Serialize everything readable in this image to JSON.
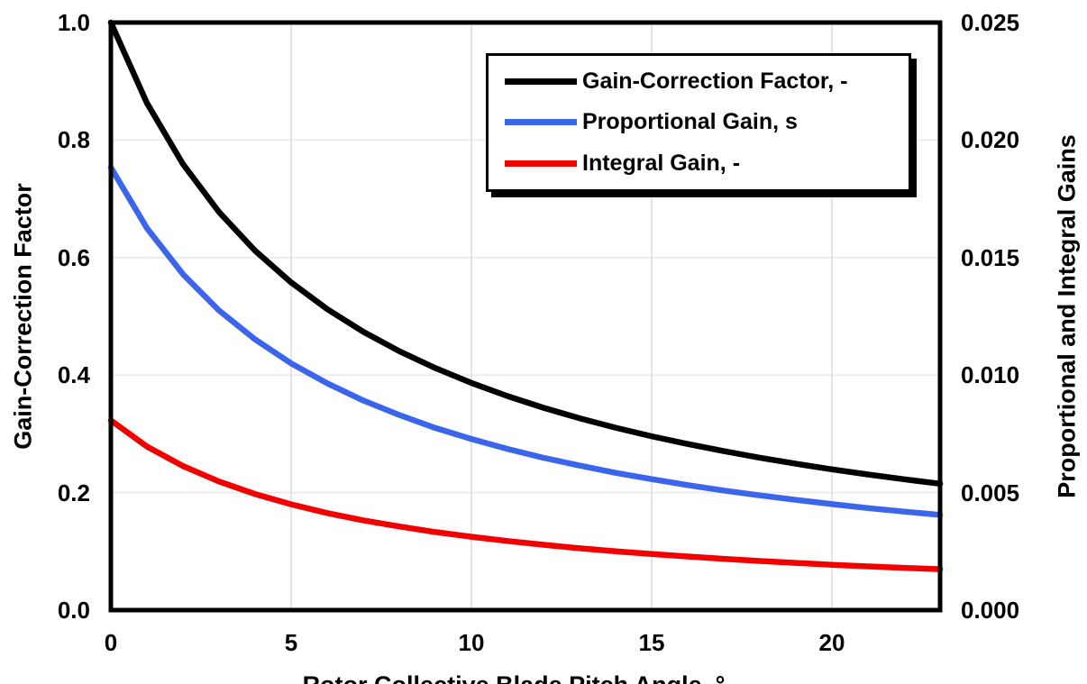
{
  "chart_data": {
    "type": "line",
    "title": "",
    "xlabel": "Rotor Collective Blade Pitch Angle, °",
    "ylabel_left": "Gain-Correction Factor",
    "ylabel_right": "Proportional and Integral Gains",
    "xlim": [
      0,
      23
    ],
    "ylim_left": [
      0.0,
      1.0
    ],
    "ylim_right": [
      0.0,
      0.025
    ],
    "x_tick_labels": [
      "0",
      "5",
      "10",
      "15",
      "20"
    ],
    "x_tick_values": [
      0,
      5,
      10,
      15,
      20
    ],
    "y_tick_labels_left": [
      "0.0",
      "0.2",
      "0.4",
      "0.6",
      "0.8",
      "1.0"
    ],
    "y_tick_values_left": [
      0.0,
      0.2,
      0.4,
      0.6,
      0.8,
      1.0
    ],
    "y_tick_labels_right": [
      "0.000",
      "0.005",
      "0.010",
      "0.015",
      "0.020",
      "0.025"
    ],
    "y_tick_values_right": [
      0.0,
      0.005,
      0.01,
      0.015,
      0.02,
      0.025
    ],
    "grid": true,
    "legend_position": "top-center",
    "x": [
      0,
      1,
      2,
      3,
      4,
      5,
      6,
      7,
      8,
      9,
      10,
      11,
      12,
      13,
      14,
      15,
      16,
      17,
      18,
      19,
      20,
      21,
      22,
      23
    ],
    "series": [
      {
        "name": "Gain-Correction Factor, -",
        "color": "#000000",
        "axis": "left",
        "values": [
          1.0,
          0.8631,
          0.7591,
          0.6775,
          0.6117,
          0.5576,
          0.5123,
          0.4738,
          0.4407,
          0.4119,
          0.3866,
          0.3643,
          0.3443,
          0.3265,
          0.3104,
          0.2959,
          0.2826,
          0.2705,
          0.2593,
          0.2491,
          0.2396,
          0.2308,
          0.2227,
          0.2151
        ]
      },
      {
        "name": "Proportional Gain, s",
        "color": "#3B66EB",
        "axis": "right",
        "values": [
          0.01883,
          0.01625,
          0.01429,
          0.01275,
          0.01152,
          0.0105,
          0.00965,
          0.00892,
          0.0083,
          0.00775,
          0.00728,
          0.00686,
          0.00648,
          0.00615,
          0.00584,
          0.00557,
          0.00532,
          0.00509,
          0.00488,
          0.00469,
          0.00451,
          0.00434,
          0.00419,
          0.00405
        ]
      },
      {
        "name": "Integral Gain, -",
        "color": "#F20000",
        "axis": "right",
        "values": [
          0.00807,
          0.00696,
          0.00613,
          0.00547,
          0.00494,
          0.0045,
          0.00413,
          0.00382,
          0.00356,
          0.00332,
          0.00312,
          0.00294,
          0.00278,
          0.00263,
          0.0025,
          0.00239,
          0.00228,
          0.00218,
          0.00209,
          0.00201,
          0.00193,
          0.00186,
          0.0018,
          0.00174
        ]
      }
    ]
  }
}
